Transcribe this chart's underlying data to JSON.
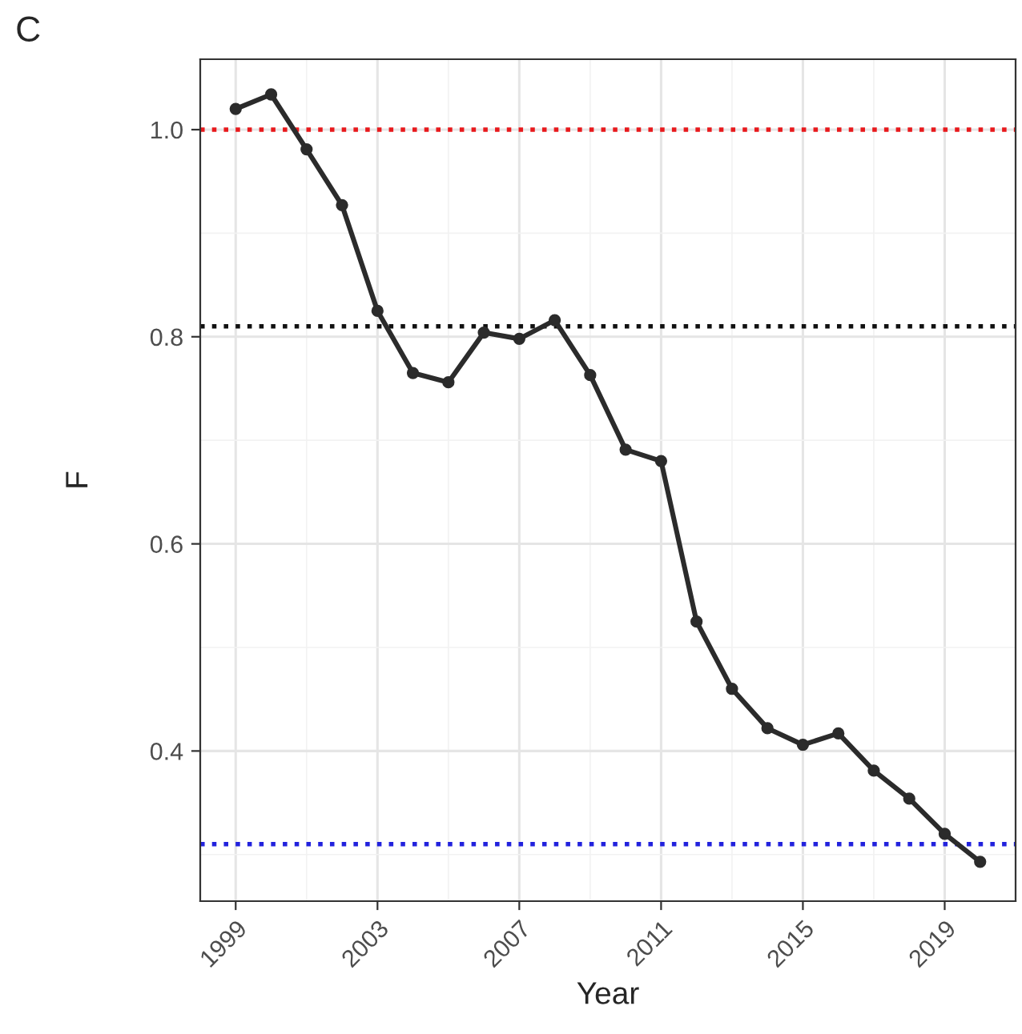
{
  "chart_data": {
    "type": "line",
    "xlabel": "Year",
    "ylabel": "F",
    "annotations": [
      "C"
    ],
    "x": [
      1999,
      2000,
      2001,
      2002,
      2003,
      2004,
      2005,
      2006,
      2007,
      2008,
      2009,
      2010,
      2011,
      2012,
      2013,
      2014,
      2015,
      2016,
      2017,
      2018,
      2019,
      2020
    ],
    "series": [
      {
        "color": "#2b2b2b",
        "values": [
          1.02,
          1.034,
          0.981,
          0.927,
          0.825,
          0.765,
          0.756,
          0.804,
          0.798,
          0.816,
          0.763,
          0.691,
          0.68,
          0.525,
          0.46,
          0.422,
          0.406,
          0.417,
          0.381,
          0.354,
          0.32,
          0.293
        ]
      }
    ],
    "marker": "circle",
    "line_style": "solid",
    "xlim": [
      1998,
      2021
    ],
    "xticks": [
      1999,
      2003,
      2007,
      2011,
      2015,
      2019
    ],
    "ylim": [
      0.255,
      1.068
    ],
    "yticks": [
      {
        "value": 0.4,
        "label": "0.4"
      },
      {
        "value": 0.6,
        "label": "0.6"
      },
      {
        "value": 0.8,
        "label": "0.8"
      },
      {
        "value": 1.0,
        "label": "1.0"
      }
    ],
    "grid": true,
    "ref_lines": [
      {
        "axis": "y",
        "value": 1.0,
        "color": "#e8191c",
        "line_style": "dotted"
      },
      {
        "axis": "y",
        "value": 0.81,
        "color": "#111111",
        "line_style": "dotted"
      },
      {
        "axis": "y",
        "value": 0.31,
        "color": "#2222dd",
        "line_style": "dotted"
      }
    ]
  }
}
